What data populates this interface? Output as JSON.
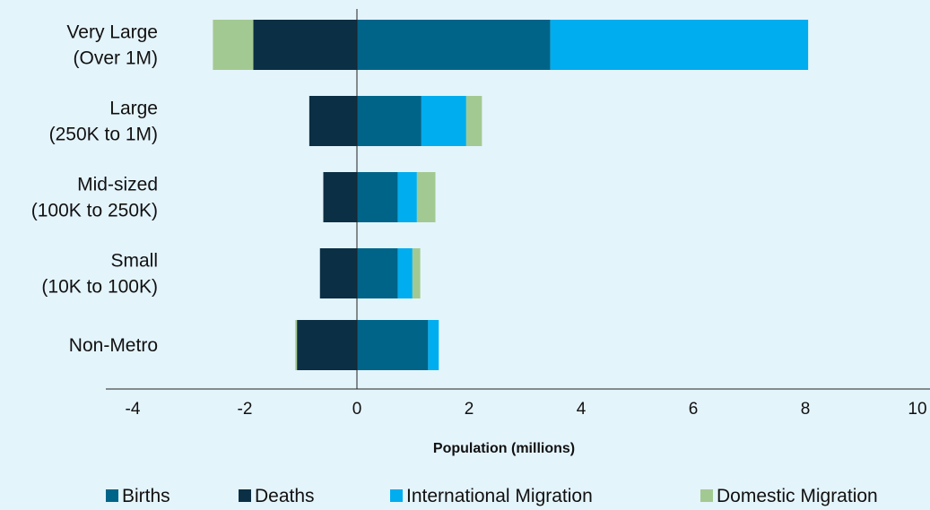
{
  "chart_data": {
    "type": "bar",
    "orientation": "horizontal",
    "stacked": true,
    "categories": [
      [
        "Very Large",
        "(Over 1M)"
      ],
      [
        "Large",
        "(250K to 1M)"
      ],
      [
        "Mid-sized",
        "(100K to 250K)"
      ],
      [
        "Small",
        "(10K to 100K)"
      ],
      [
        "Non-Metro"
      ]
    ],
    "series": [
      {
        "name": "Births",
        "color": "#006489",
        "values": [
          3.45,
          1.15,
          0.73,
          0.73,
          1.27
        ]
      },
      {
        "name": "Deaths",
        "color": "#0b2f44",
        "values": [
          -1.85,
          -0.85,
          -0.6,
          -0.66,
          -1.07
        ]
      },
      {
        "name": "International Migration",
        "color": "#00adef",
        "values": [
          4.6,
          0.8,
          0.34,
          0.26,
          0.19
        ]
      },
      {
        "name": "Domestic Migration",
        "color": "#a3c992",
        "values": [
          -0.72,
          0.28,
          0.33,
          0.14,
          -0.03
        ]
      }
    ],
    "xlabel": "Population (millions)",
    "xlim": [
      -4.4,
      10
    ],
    "xticks": [
      -4,
      -2,
      0,
      2,
      4,
      6,
      8,
      10
    ],
    "xtick_labels": [
      "-4",
      "-2",
      "0",
      "2",
      "4",
      "6",
      "8",
      "10"
    ],
    "grid": false,
    "legend_position": "bottom"
  }
}
